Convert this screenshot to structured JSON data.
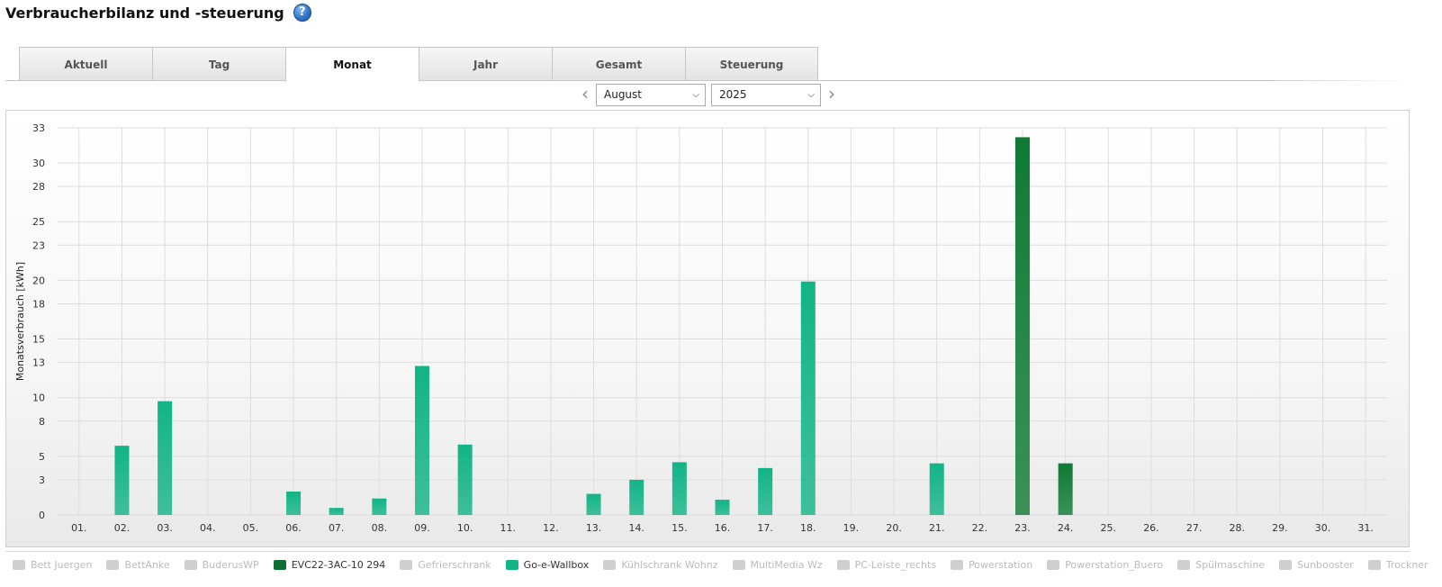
{
  "header": {
    "title": "Verbraucherbilanz und -steuerung",
    "help_glyph": "?"
  },
  "tabs": [
    {
      "label": "Aktuell",
      "active": false
    },
    {
      "label": "Tag",
      "active": false
    },
    {
      "label": "Monat",
      "active": true
    },
    {
      "label": "Jahr",
      "active": false
    },
    {
      "label": "Gesamt",
      "active": false
    },
    {
      "label": "Steuerung",
      "active": false
    }
  ],
  "nav": {
    "prev_glyph": "‹",
    "next_glyph": "›",
    "month": "August",
    "year": "2025"
  },
  "colors": {
    "go_e_wallbox": "#12b486",
    "evc22": "#0e7a34",
    "inactive": "#cfcfcf",
    "grid": "#dddddd"
  },
  "legend": [
    {
      "label": "Bett Juergen",
      "active": false,
      "color": "#cfcfcf"
    },
    {
      "label": "BettAnke",
      "active": false,
      "color": "#cfcfcf"
    },
    {
      "label": "BuderusWP",
      "active": false,
      "color": "#cfcfcf"
    },
    {
      "label": "EVC22-3AC-10 294",
      "active": true,
      "color": "#0e6e30"
    },
    {
      "label": "Gefrierschrank",
      "active": false,
      "color": "#cfcfcf"
    },
    {
      "label": "Go-e-Wallbox",
      "active": true,
      "color": "#12b486"
    },
    {
      "label": "Kühlschrank Wohnz",
      "active": false,
      "color": "#cfcfcf"
    },
    {
      "label": "MultiMedia Wz",
      "active": false,
      "color": "#cfcfcf"
    },
    {
      "label": "PC-Leiste_rechts",
      "active": false,
      "color": "#cfcfcf"
    },
    {
      "label": "Powerstation",
      "active": false,
      "color": "#cfcfcf"
    },
    {
      "label": "Powerstation_Buero",
      "active": false,
      "color": "#cfcfcf"
    },
    {
      "label": "Spülmaschine",
      "active": false,
      "color": "#cfcfcf"
    },
    {
      "label": "Sunbooster",
      "active": false,
      "color": "#cfcfcf"
    },
    {
      "label": "Trockner",
      "active": false,
      "color": "#cfcfcf"
    }
  ],
  "chart_data": {
    "type": "bar",
    "ylabel": "Monatsverbrauch [kWh]",
    "ylim": [
      0,
      33
    ],
    "yticks": [
      "0",
      "3",
      "5",
      "8",
      "10",
      "13",
      "15",
      "18",
      "20",
      "23",
      "25",
      "28",
      "30",
      "33"
    ],
    "grid": true,
    "legend_position": "bottom",
    "categories": [
      "01.",
      "02.",
      "03.",
      "04.",
      "05.",
      "06.",
      "07.",
      "08.",
      "09.",
      "10.",
      "11.",
      "12.",
      "13.",
      "14.",
      "15.",
      "16.",
      "17.",
      "18.",
      "19.",
      "20.",
      "21.",
      "22.",
      "23.",
      "24.",
      "25.",
      "26.",
      "27.",
      "28.",
      "29.",
      "30.",
      "31."
    ],
    "series": [
      {
        "name": "Go-e-Wallbox",
        "color": "#12b486",
        "values": [
          0,
          5.9,
          9.7,
          0,
          0,
          2.0,
          0.6,
          1.4,
          12.7,
          6.0,
          0,
          0,
          1.8,
          3.0,
          4.5,
          1.3,
          4.0,
          19.9,
          0,
          0,
          4.4,
          0,
          0,
          0,
          0,
          0,
          0,
          0,
          0,
          0,
          0
        ]
      },
      {
        "name": "EVC22-3AC-10 294",
        "color": "#0e7a34",
        "values": [
          0,
          0,
          0,
          0,
          0,
          0,
          0,
          0,
          0,
          0,
          0,
          0,
          0,
          0,
          0,
          0,
          0,
          0,
          0,
          0,
          0,
          0,
          32.2,
          4.4,
          0,
          0,
          0,
          0,
          0,
          0,
          0
        ]
      }
    ]
  }
}
